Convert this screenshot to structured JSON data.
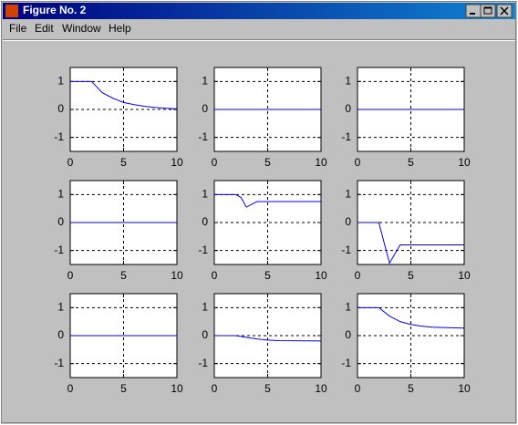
{
  "window": {
    "title": "Figure No. 2",
    "menu": [
      "File",
      "Edit",
      "Window",
      "Help"
    ]
  },
  "chart_data": [
    {
      "type": "line",
      "x": [
        0,
        2,
        3,
        4,
        5,
        6,
        7,
        8,
        9,
        10
      ],
      "values": [
        1,
        1,
        0.6,
        0.4,
        0.25,
        0.17,
        0.11,
        0.07,
        0.04,
        0.02
      ],
      "color": "#0000ff",
      "xlim": [
        0,
        10
      ],
      "ylim": [
        -1.5,
        1.5
      ],
      "xticks": [
        0,
        5,
        10
      ],
      "yticks": [
        -1,
        0,
        1
      ],
      "grid": true
    },
    {
      "type": "line",
      "x": [
        0,
        10
      ],
      "values": [
        0,
        0
      ],
      "color": "#0000ff",
      "xlim": [
        0,
        10
      ],
      "ylim": [
        -1.5,
        1.5
      ],
      "xticks": [
        0,
        5,
        10
      ],
      "yticks": [
        -1,
        0,
        1
      ],
      "grid": true
    },
    {
      "type": "line",
      "x": [
        0,
        10
      ],
      "values": [
        0,
        0
      ],
      "color": "#0000ff",
      "xlim": [
        0,
        10
      ],
      "ylim": [
        -1.5,
        1.5
      ],
      "xticks": [
        0,
        5,
        10
      ],
      "yticks": [
        -1,
        0,
        1
      ],
      "grid": true
    },
    {
      "type": "line",
      "x": [
        0,
        10
      ],
      "values": [
        0,
        0
      ],
      "color": "#0000ff",
      "xlim": [
        0,
        10
      ],
      "ylim": [
        -1.5,
        1.5
      ],
      "xticks": [
        0,
        5,
        10
      ],
      "yticks": [
        -1,
        0,
        1
      ],
      "grid": true
    },
    {
      "type": "line",
      "x": [
        0,
        2,
        2.5,
        3,
        4,
        10
      ],
      "values": [
        1,
        1,
        0.9,
        0.55,
        0.75,
        0.75
      ],
      "color": "#0000ff",
      "xlim": [
        0,
        10
      ],
      "ylim": [
        -1.5,
        1.5
      ],
      "xticks": [
        0,
        5,
        10
      ],
      "yticks": [
        -1,
        0,
        1
      ],
      "grid": true
    },
    {
      "type": "line",
      "x": [
        0,
        2,
        3,
        4,
        10
      ],
      "values": [
        0,
        0,
        -1.45,
        -0.8,
        -0.8
      ],
      "color": "#0000ff",
      "xlim": [
        0,
        10
      ],
      "ylim": [
        -1.5,
        1.5
      ],
      "xticks": [
        0,
        5,
        10
      ],
      "yticks": [
        -1,
        0,
        1
      ],
      "grid": true
    },
    {
      "type": "line",
      "x": [
        0,
        10
      ],
      "values": [
        0,
        0
      ],
      "color": "#0000ff",
      "xlim": [
        0,
        10
      ],
      "ylim": [
        -1.5,
        1.5
      ],
      "xticks": [
        0,
        5,
        10
      ],
      "yticks": [
        -1,
        0,
        1
      ],
      "grid": true
    },
    {
      "type": "line",
      "x": [
        0,
        2,
        3,
        4,
        5,
        6,
        10
      ],
      "values": [
        0,
        0,
        -0.06,
        -0.12,
        -0.16,
        -0.18,
        -0.19
      ],
      "color": "#0000ff",
      "xlim": [
        0,
        10
      ],
      "ylim": [
        -1.5,
        1.5
      ],
      "xticks": [
        0,
        5,
        10
      ],
      "yticks": [
        -1,
        0,
        1
      ],
      "grid": true
    },
    {
      "type": "line",
      "x": [
        0,
        2,
        3,
        4,
        5,
        6,
        7,
        8,
        10
      ],
      "values": [
        1,
        1,
        0.7,
        0.5,
        0.4,
        0.34,
        0.3,
        0.29,
        0.27
      ],
      "color": "#0000ff",
      "xlim": [
        0,
        10
      ],
      "ylim": [
        -1.5,
        1.5
      ],
      "xticks": [
        0,
        5,
        10
      ],
      "yticks": [
        -1,
        0,
        1
      ],
      "grid": true
    }
  ]
}
